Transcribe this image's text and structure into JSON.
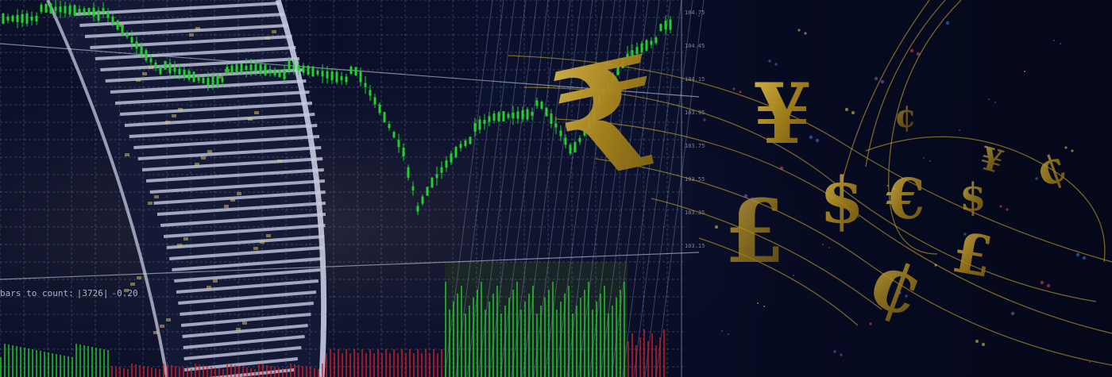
{
  "scene": {
    "description_tags": [
      "stock-chart-overlay",
      "skyscraper",
      "currency-symbols"
    ]
  },
  "chart_overlay": {
    "readout_label": "bars to count:",
    "readout_value": "|3726|",
    "readout_delta": "-0.20",
    "price_axis_ticks": [
      "104.75",
      "104.45",
      "104.15",
      "103.95",
      "103.75",
      "103.55",
      "103.35",
      "103.15"
    ],
    "candle_color": "#1fd12a",
    "down_volume_color": "#d21e2a"
  },
  "currency_symbols": [
    "₹",
    "¥",
    "$",
    "€",
    "$",
    "¥",
    "¢",
    "£",
    "¢",
    "¢",
    "£"
  ],
  "colors": {
    "background": "#070b22",
    "building": "#c7cbe0",
    "gold": "#c4a22a"
  }
}
